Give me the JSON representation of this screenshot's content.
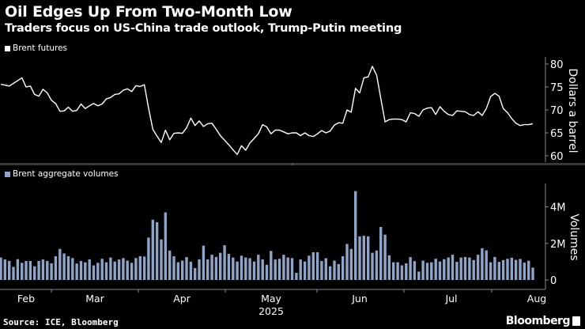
{
  "title": "Oil Edges Up From Two-Month Low",
  "subtitle": "Traders focus on US-China trade outlook, Trump-Putin meeting",
  "source": "Source: ICE, Bloomberg",
  "brand": "Bloomberg",
  "colors": {
    "price_line": "#ffffff",
    "volume_bar": "#8ea4c8",
    "background": "#000000",
    "axis": "#888888"
  },
  "chart_data": [
    {
      "type": "line",
      "legend": "Brent futures",
      "ylabel": "Dollars a barrel",
      "ylim": [
        58,
        82
      ],
      "yticks": [
        60,
        65,
        70,
        75,
        80
      ],
      "grid": false,
      "x": [
        "2025-02-11",
        "2025-02-12",
        "2025-02-13",
        "2025-02-14",
        "2025-02-17",
        "2025-02-18",
        "2025-02-19",
        "2025-02-20",
        "2025-02-21",
        "2025-02-24",
        "2025-02-25",
        "2025-02-26",
        "2025-02-27",
        "2025-02-28",
        "2025-03-03",
        "2025-03-04",
        "2025-03-05",
        "2025-03-06",
        "2025-03-07",
        "2025-03-10",
        "2025-03-11",
        "2025-03-12",
        "2025-03-13",
        "2025-03-14",
        "2025-03-17",
        "2025-03-18",
        "2025-03-19",
        "2025-03-20",
        "2025-03-21",
        "2025-03-24",
        "2025-03-25",
        "2025-03-26",
        "2025-03-27",
        "2025-03-28",
        "2025-03-31",
        "2025-04-01",
        "2025-04-02",
        "2025-04-03",
        "2025-04-04",
        "2025-04-07",
        "2025-04-08",
        "2025-04-09",
        "2025-04-10",
        "2025-04-11",
        "2025-04-14",
        "2025-04-15",
        "2025-04-16",
        "2025-04-17",
        "2025-04-21",
        "2025-04-22",
        "2025-04-23",
        "2025-04-24",
        "2025-04-25",
        "2025-04-28",
        "2025-04-29",
        "2025-04-30",
        "2025-05-01",
        "2025-05-02",
        "2025-05-05",
        "2025-05-06",
        "2025-05-07",
        "2025-05-08",
        "2025-05-09",
        "2025-05-12",
        "2025-05-13",
        "2025-05-14",
        "2025-05-15",
        "2025-05-16",
        "2025-05-19",
        "2025-05-20",
        "2025-05-21",
        "2025-05-22",
        "2025-05-23",
        "2025-05-26",
        "2025-05-27",
        "2025-05-28",
        "2025-05-29",
        "2025-05-30",
        "2025-06-02",
        "2025-06-03",
        "2025-06-04",
        "2025-06-05",
        "2025-06-06",
        "2025-06-09",
        "2025-06-10",
        "2025-06-11",
        "2025-06-12",
        "2025-06-13",
        "2025-06-16",
        "2025-06-17",
        "2025-06-18",
        "2025-06-19",
        "2025-06-20",
        "2025-06-23",
        "2025-06-24",
        "2025-06-25",
        "2025-06-26",
        "2025-06-27",
        "2025-06-30",
        "2025-07-01",
        "2025-07-02",
        "2025-07-03",
        "2025-07-04",
        "2025-07-07",
        "2025-07-08",
        "2025-07-09",
        "2025-07-10",
        "2025-07-11",
        "2025-07-14",
        "2025-07-15",
        "2025-07-16",
        "2025-07-17",
        "2025-07-18",
        "2025-07-21",
        "2025-07-22",
        "2025-07-23",
        "2025-07-24",
        "2025-07-25",
        "2025-07-28",
        "2025-07-29",
        "2025-07-30",
        "2025-07-31",
        "2025-08-01",
        "2025-08-04",
        "2025-08-05",
        "2025-08-06",
        "2025-08-07"
      ],
      "values": [
        75.6,
        75.4,
        75.2,
        75.8,
        76.4,
        77.0,
        75.0,
        75.2,
        73.4,
        73.0,
        74.5,
        73.7,
        72.1,
        71.4,
        69.7,
        69.8,
        70.6,
        69.7,
        69.9,
        71.3,
        70.3,
        70.9,
        71.4,
        70.9,
        71.3,
        72.4,
        72.7,
        73.4,
        73.5,
        74.3,
        74.6,
        74.0,
        75.3,
        75.1,
        75.5,
        70.4,
        65.8,
        64.3,
        62.9,
        65.6,
        63.5,
        64.9,
        65.0,
        64.9,
        66.1,
        68.2,
        66.6,
        67.6,
        66.4,
        67.0,
        67.1,
        65.8,
        64.4,
        63.4,
        62.4,
        61.3,
        60.3,
        62.2,
        61.2,
        62.8,
        63.8,
        64.8,
        66.8,
        66.3,
        64.8,
        65.6,
        65.6,
        65.2,
        64.8,
        65.0,
        65.0,
        64.4,
        65.0,
        64.4,
        64.2,
        64.8,
        65.5,
        65.0,
        65.4,
        66.7,
        67.2,
        67.1,
        70.0,
        69.5,
        74.7,
        73.7,
        77.0,
        77.2,
        79.5,
        77.6,
        72.5,
        67.4,
        67.9,
        68.0,
        68.0,
        67.9,
        67.4,
        69.4,
        69.2,
        68.6,
        70.0,
        70.4,
        70.5,
        69.0,
        70.7,
        69.7,
        69.0,
        68.8,
        69.8,
        69.7,
        69.6,
        69.0,
        68.8,
        69.6,
        68.8,
        70.3,
        72.9,
        73.6,
        73.0,
        70.3,
        69.4,
        68.1,
        67.1,
        66.6,
        66.8,
        66.8,
        67.0
      ]
    },
    {
      "type": "bar",
      "legend": "Brent aggregate volumes",
      "ylabel": "Volumes",
      "ylim": [
        0,
        5
      ],
      "yticks": [
        0,
        2,
        4
      ],
      "ytick_labels": [
        "0",
        "2M",
        "4M"
      ],
      "unit": "millions",
      "grid": false,
      "values": [
        1.23,
        1.12,
        1.04,
        0.72,
        1.14,
        0.94,
        1.04,
        1.04,
        0.75,
        1.04,
        1.12,
        1.04,
        0.91,
        1.3,
        1.7,
        1.45,
        1.3,
        1.2,
        0.9,
        1.04,
        0.97,
        1.13,
        0.8,
        0.94,
        1.16,
        0.97,
        1.23,
        1.01,
        1.12,
        1.2,
        1.06,
        0.94,
        1.2,
        1.3,
        1.28,
        2.32,
        3.3,
        3.16,
        2.22,
        3.7,
        1.61,
        1.3,
        0.97,
        1.06,
        1.25,
        1.0,
        0.65,
        1.13,
        1.88,
        1.12,
        1.38,
        1.26,
        1.49,
        1.9,
        1.43,
        1.23,
        1.01,
        1.33,
        1.23,
        1.19,
        1.01,
        1.38,
        1.13,
        0.83,
        1.59,
        1.12,
        1.16,
        1.38,
        1.23,
        1.2,
        0.39,
        1.12,
        1.01,
        1.33,
        1.52,
        1.52,
        1.04,
        1.19,
        0.75,
        1.06,
        0.87,
        1.3,
        1.97,
        1.7,
        4.86,
        2.39,
        2.42,
        2.39,
        1.49,
        1.61,
        2.9,
        2.48,
        1.35,
        0.97,
        0.97,
        0.8,
        0.91,
        1.25,
        1.03,
        0.46,
        1.06,
        0.94,
        0.97,
        1.16,
        1.01,
        1.14,
        1.23,
        1.38,
        0.99,
        1.23,
        1.26,
        1.23,
        1.09,
        1.38,
        1.74,
        1.62,
        0.97,
        1.26,
        0.99,
        1.09,
        1.16,
        1.22,
        1.1,
        1.15,
        0.95,
        1.05,
        0.68
      ]
    }
  ],
  "x_axis": {
    "month_labels": [
      "Feb",
      "Mar",
      "Apr",
      "May",
      "Jun",
      "Jul",
      "Aug"
    ],
    "year_label": "2025"
  }
}
